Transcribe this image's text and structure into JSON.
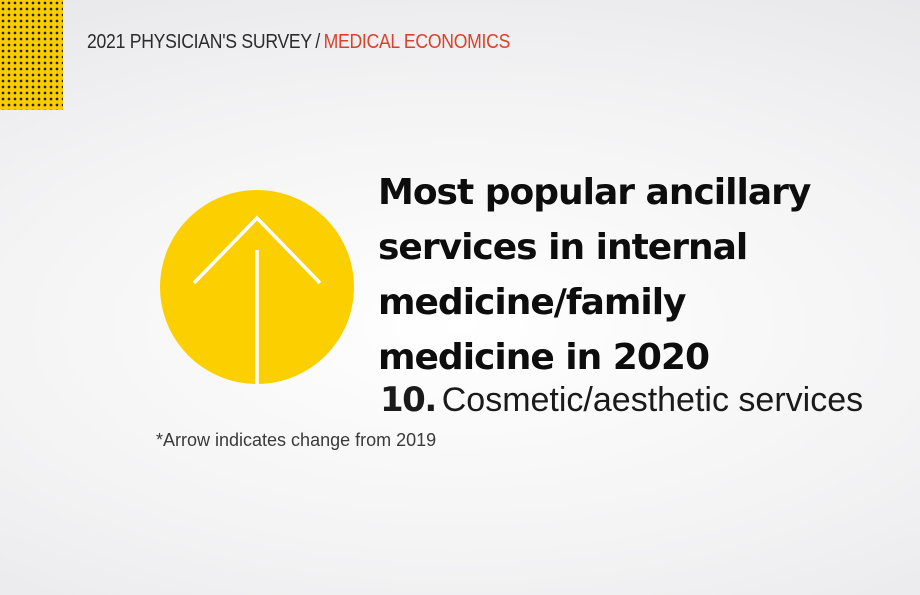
{
  "header": {
    "survey": "2021 PHYSICIAN'S SURVEY",
    "separator": "/",
    "publication": "MEDICAL ECONOMICS"
  },
  "icon": {
    "name": "arrow-up-icon",
    "direction": "up",
    "color": "#fcd000"
  },
  "title": "Most popular ancillary services in internal medicine/family medicine in 2020",
  "item": {
    "rank": "10.",
    "label": "Cosmetic/aesthetic services"
  },
  "footnote": "*Arrow indicates change from 2019",
  "colors": {
    "accent": "#fcd000",
    "publication": "#d9412b",
    "text": "#0d0d0d"
  }
}
